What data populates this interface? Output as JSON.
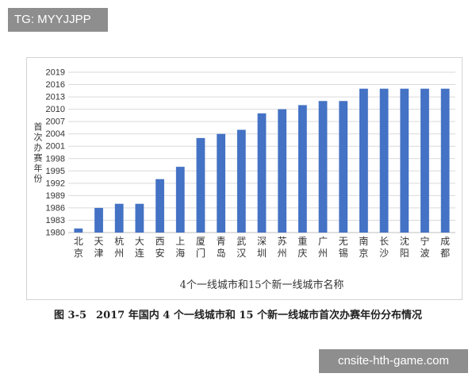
{
  "watermarks": {
    "top": "TG: MYYJJPP",
    "bottom": "cnsite-hth-game.com"
  },
  "caption": {
    "figure_no": "图 3-5",
    "text": "2017 年国内 4 个一线城市和 15 个新一线城市首次办赛年份分布情况"
  },
  "colors": {
    "bar": "#4472c4",
    "grid": "#d9d9d9",
    "axis_text": "#333333"
  },
  "chart_data": {
    "type": "bar",
    "categories": [
      "北京",
      "天津",
      "杭州",
      "大连",
      "西安",
      "上海",
      "厦门",
      "青岛",
      "武汉",
      "深圳",
      "苏州",
      "重庆",
      "广州",
      "无锡",
      "南京",
      "长沙",
      "沈阳",
      "宁波",
      "成都"
    ],
    "values": [
      1981,
      1986,
      1987,
      1987,
      1993,
      1996,
      2003,
      2004,
      2005,
      2009,
      2010,
      2011,
      2012,
      2012,
      2015,
      2015,
      2015,
      2015,
      2015
    ],
    "title": "",
    "xlabel": "4个一线城市和15个新一线城市名称",
    "ylabel": "首次办赛年份",
    "ylim": [
      1980,
      2019
    ],
    "yticks": [
      1980,
      1983,
      1986,
      1989,
      1992,
      1995,
      1998,
      2001,
      2004,
      2007,
      2010,
      2013,
      2016,
      2019
    ],
    "grid": true,
    "legend": "none"
  }
}
